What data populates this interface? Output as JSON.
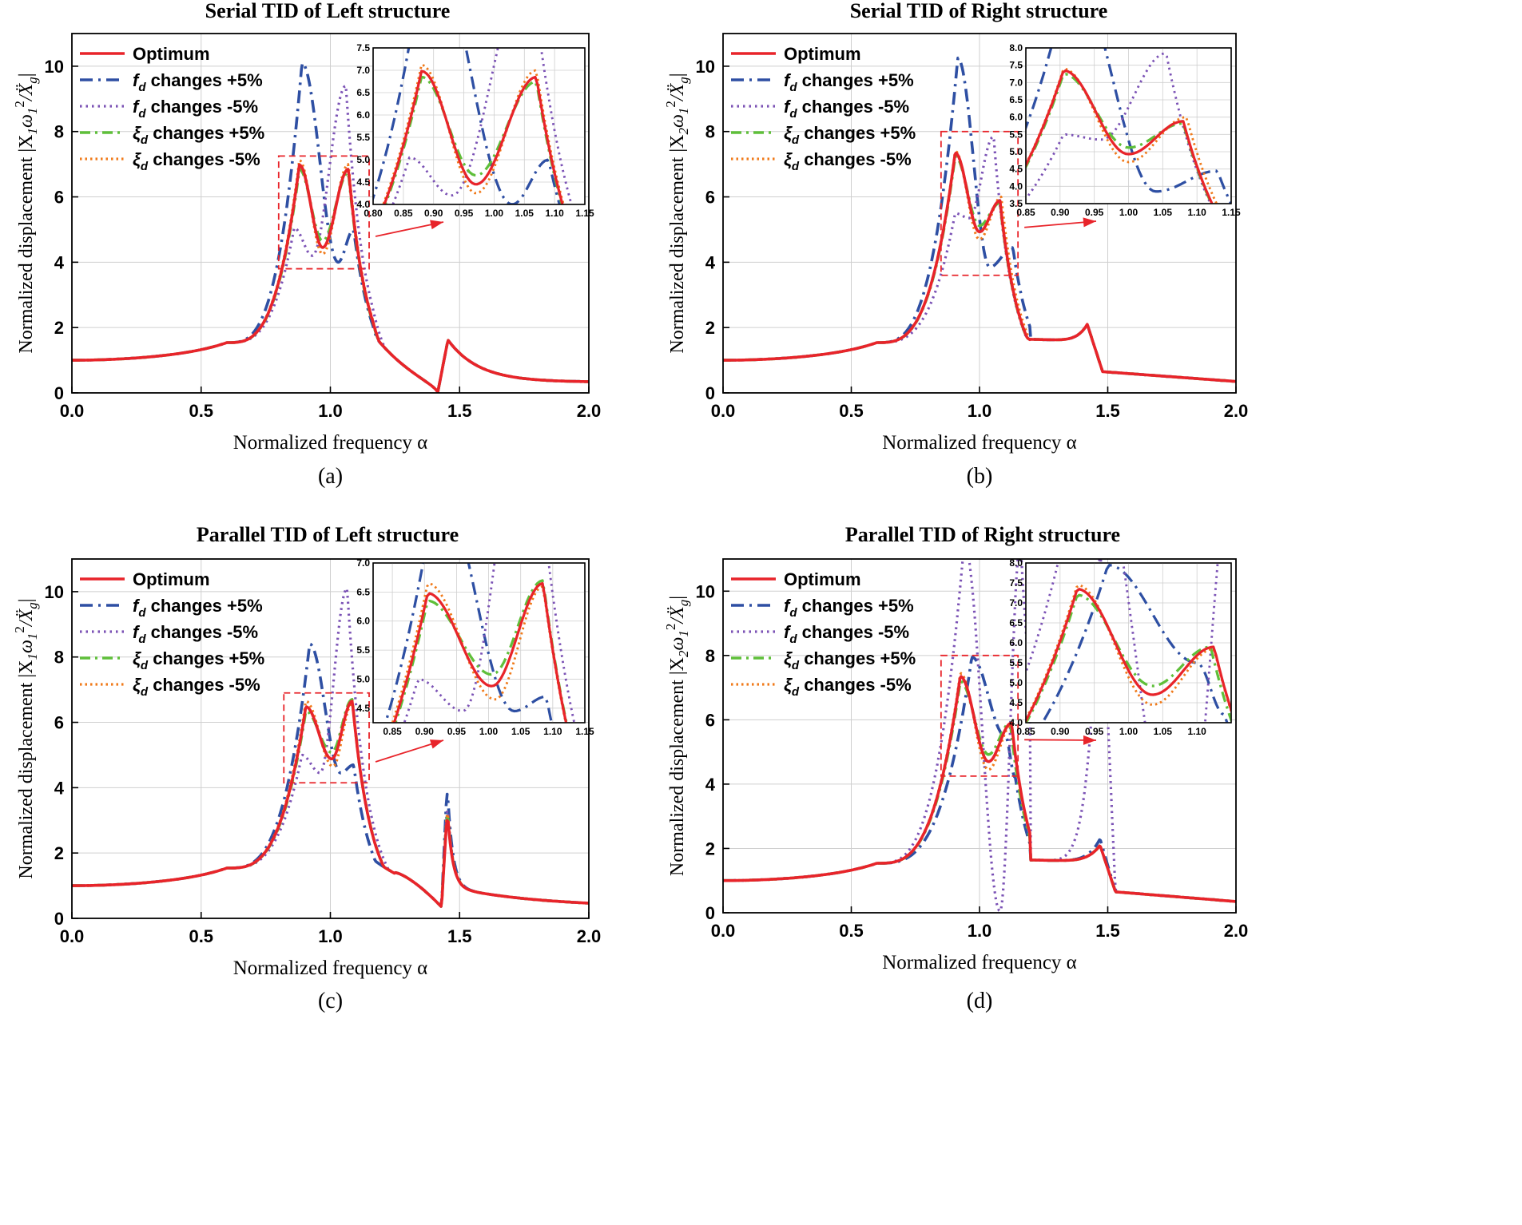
{
  "colors": {
    "optimum": "#e8242a",
    "fd_plus": "#2e4fa3",
    "fd_minus": "#7b52b5",
    "xi_plus": "#5fbf3a",
    "xi_minus": "#f07a1a",
    "box": "#e8242a",
    "arrow": "#e8242a",
    "grid": "#cfcfcf"
  },
  "common": {
    "xlabel": "Normalized frequency α",
    "xlim": [
      0,
      2.0
    ],
    "xticks": [
      "0.0",
      "0.5",
      "1.0",
      "1.5",
      "2.0"
    ],
    "ylim": [
      0,
      11
    ],
    "yticks": [
      "0",
      "2",
      "4",
      "6",
      "8",
      "10"
    ],
    "legend": [
      "Optimum",
      "changes +5%",
      "changes -5%",
      "changes +5%",
      "changes -5%"
    ],
    "legend_symbols": [
      "",
      "f",
      "f",
      "ξ",
      "ξ"
    ],
    "legend_subscript": "d"
  },
  "chart_data": [
    {
      "type": "line",
      "panel": "(a)",
      "title": "Serial TID of Left structure",
      "ylabel": "Normalized displacement |X1ω1²/Ẍg|",
      "ylabel_parts": {
        "pre": "Normalized displacement |X",
        "sub1": "1",
        "mid": "ω",
        "sub2": "1",
        "sup": "2",
        "post": "/Ẍ",
        "sub3": "g",
        "end": "|"
      },
      "zoom_box": {
        "x": [
          0.8,
          1.15
        ],
        "y": [
          3.8,
          7.25
        ]
      },
      "inset": {
        "xlim": [
          0.8,
          1.15
        ],
        "ylim": [
          4.0,
          7.5
        ],
        "xticks": [
          "0.80",
          "0.85",
          "0.90",
          "0.95",
          "1.00",
          "1.05",
          "1.10",
          "1.15"
        ],
        "yticks": [
          "4.0",
          "4.5",
          "5.0",
          "5.5",
          "6.0",
          "6.5",
          "7.0",
          "7.5"
        ]
      },
      "series": [
        {
          "name": "Optimum",
          "peaks": [
            [
              0.88,
              6.98
            ],
            [
              1.07,
              6.85
            ]
          ],
          "valley": [
            0.97,
            4.45
          ],
          "zero_freq": 1.415,
          "high_peak": [
            1.455,
            1.62
          ]
        },
        {
          "name": "fd changes +5%",
          "peaks": [
            [
              0.89,
              10.1
            ],
            [
              1.09,
              5.0
            ]
          ],
          "valley": [
            1.03,
            4.0
          ],
          "zero_freq": 1.415,
          "high_peak": [
            1.455,
            1.62
          ]
        },
        {
          "name": "fd changes -5%",
          "peaks": [
            [
              0.86,
              5.05
            ],
            [
              1.06,
              9.4
            ]
          ],
          "valley": [
            0.93,
            4.2
          ],
          "zero_freq": 1.415,
          "high_peak": [
            1.455,
            1.62
          ]
        },
        {
          "name": "ξd changes +5%",
          "peaks": [
            [
              0.88,
              6.85
            ],
            [
              1.07,
              6.75
            ]
          ],
          "valley": [
            0.97,
            4.65
          ],
          "zero_freq": 1.415,
          "high_peak": [
            1.455,
            1.62
          ]
        },
        {
          "name": "ξd changes -5%",
          "peaks": [
            [
              0.88,
              7.12
            ],
            [
              1.07,
              7.0
            ]
          ],
          "valley": [
            0.97,
            4.25
          ],
          "zero_freq": 1.415,
          "high_peak": [
            1.455,
            1.62
          ]
        }
      ]
    },
    {
      "type": "line",
      "panel": "(b)",
      "title": "Serial TID of Right structure",
      "ylabel": "Normalized displacement |X2ω1²/Ẍg|",
      "ylabel_parts": {
        "pre": "Normalized displacement |X",
        "sub1": "2",
        "mid": "ω",
        "sub2": "1",
        "sup": "2",
        "post": "/Ẍ",
        "sub3": "g",
        "end": "|"
      },
      "zoom_box": {
        "x": [
          0.85,
          1.15
        ],
        "y": [
          3.6,
          8.0
        ]
      },
      "inset": {
        "xlim": [
          0.85,
          1.15
        ],
        "ylim": [
          3.5,
          8.0
        ],
        "xticks": [
          "0.85",
          "0.90",
          "0.95",
          "1.00",
          "1.05",
          "1.10",
          "1.15"
        ],
        "yticks": [
          "3.5",
          "4.0",
          "4.5",
          "5.0",
          "5.5",
          "6.0",
          "6.5",
          "7.0",
          "7.5",
          "8.0"
        ]
      },
      "series": [
        {
          "name": "Optimum",
          "peaks": [
            [
              0.905,
              7.35
            ],
            [
              1.08,
              5.88
            ]
          ],
          "valley": [
            1.0,
            4.93
          ],
          "bump": [
            1.42,
            2.1
          ]
        },
        {
          "name": "fd changes +5%",
          "peaks": [
            [
              0.915,
              10.25
            ],
            [
              1.13,
              4.45
            ]
          ],
          "valley": [
            1.04,
            3.85
          ],
          "bump": [
            1.42,
            2.1
          ]
        },
        {
          "name": "fd changes -5%",
          "peaks": [
            [
              0.905,
              5.5
            ],
            [
              1.055,
              7.85
            ]
          ],
          "valley": [
            0.96,
            5.35
          ],
          "bump": [
            1.42,
            2.1
          ]
        },
        {
          "name": "ξd changes +5%",
          "peaks": [
            [
              0.905,
              7.25
            ],
            [
              1.08,
              5.82
            ]
          ],
          "valley": [
            1.0,
            5.12
          ],
          "bump": [
            1.42,
            2.1
          ]
        },
        {
          "name": "ξd changes -5%",
          "peaks": [
            [
              0.905,
              7.4
            ],
            [
              1.085,
              6.0
            ]
          ],
          "valley": [
            1.0,
            4.7
          ],
          "bump": [
            1.42,
            2.1
          ]
        }
      ]
    },
    {
      "type": "line",
      "panel": "(c)",
      "title": "Parallel TID of Left structure",
      "ylabel": "Normalized displacement |X1ω1²/Ẍg|",
      "ylabel_parts": {
        "pre": "Normalized displacement |X",
        "sub1": "1",
        "mid": "ω",
        "sub2": "1",
        "sup": "2",
        "post": "/Ẍ",
        "sub3": "g",
        "end": "|"
      },
      "zoom_box": {
        "x": [
          0.82,
          1.15
        ],
        "y": [
          4.15,
          6.9
        ]
      },
      "inset": {
        "xlim": [
          0.82,
          1.15
        ],
        "ylim": [
          4.25,
          7.0
        ],
        "xticks": [
          "0.85",
          "0.90",
          "0.95",
          "1.00",
          "1.05",
          "1.10",
          "1.15"
        ],
        "yticks": [
          "4.5",
          "5.0",
          "5.5",
          "6.0",
          "6.5",
          "7.0"
        ]
      },
      "series": [
        {
          "name": "Optimum",
          "peaks": [
            [
              0.905,
              6.48
            ],
            [
              1.085,
              6.65
            ]
          ],
          "valley": [
            1.005,
            4.88
          ],
          "spike": [
            1.45,
            3.0
          ],
          "dip": [
            1.43,
            0.35
          ]
        },
        {
          "name": "fd changes +5%",
          "peaks": [
            [
              0.92,
              8.4
            ],
            [
              1.09,
              4.7
            ]
          ],
          "valley": [
            1.04,
            4.45
          ],
          "spike": [
            1.45,
            3.8
          ],
          "dip": [
            1.43,
            0.35
          ]
        },
        {
          "name": "fd changes -5%",
          "peaks": [
            [
              0.89,
              5.0
            ],
            [
              1.065,
              10.1
            ]
          ],
          "valley": [
            0.96,
            4.45
          ],
          "spike": [
            1.45,
            3.3
          ],
          "dip": [
            1.43,
            0.35
          ]
        },
        {
          "name": "ξd changes +5%",
          "peaks": [
            [
              0.905,
              6.35
            ],
            [
              1.085,
              6.7
            ]
          ],
          "valley": [
            1.005,
            5.08
          ],
          "spike": [
            1.45,
            3.1
          ],
          "dip": [
            1.43,
            0.35
          ]
        },
        {
          "name": "ξd changes -5%",
          "peaks": [
            [
              0.905,
              6.65
            ],
            [
              1.085,
              6.6
            ]
          ],
          "valley": [
            1.01,
            4.65
          ],
          "spike": [
            1.45,
            3.2
          ],
          "dip": [
            1.43,
            0.35
          ]
        }
      ]
    },
    {
      "type": "line",
      "panel": "(d)",
      "title": "Parallel TID of Right structure",
      "ylabel": "Normalized displacement |X2ω1²/Ẍg|",
      "ylabel_parts": {
        "pre": "Normalized displacement |X",
        "sub1": "2",
        "mid": "ω",
        "sub2": "1",
        "sup": "2",
        "post": "/Ẍ",
        "sub3": "g",
        "end": "|"
      },
      "zoom_box": {
        "x": [
          0.85,
          1.15
        ],
        "y": [
          4.25,
          8.0
        ]
      },
      "inset": {
        "xlim": [
          0.85,
          1.15
        ],
        "ylim": [
          4.0,
          8.0
        ],
        "xticks": [
          "0.85",
          "0.90",
          "0.95",
          "1.00",
          "1.05",
          "1.10"
        ],
        "yticks": [
          "4.0",
          "4.5",
          "5.0",
          "5.5",
          "6.0",
          "6.5",
          "7.0",
          "7.5",
          "8.0"
        ]
      },
      "series": [
        {
          "name": "Optimum",
          "peaks": [
            [
              0.925,
              7.35
            ],
            [
              1.125,
              5.9
            ]
          ],
          "valley": [
            1.035,
            4.7
          ],
          "bump": [
            1.47,
            2.1
          ]
        },
        {
          "name": "fd changes +5%",
          "peaks": [
            [
              0.97,
              7.95
            ],
            [
              1.14,
              4.2
            ]
          ],
          "valley": [
            1.1,
            5.5
          ],
          "bump": [
            1.47,
            2.3
          ]
        },
        {
          "name": "fd changes -5%",
          "peaks": [
            [
              0.94,
              11.5
            ],
            [
              1.16,
              11.5
            ]
          ],
          "valley": [
            1.08,
            0.05
          ],
          "bump": [
            1.47,
            11.5
          ]
        },
        {
          "name": "ξd changes +5%",
          "peaks": [
            [
              0.925,
              7.2
            ],
            [
              1.12,
              5.9
            ]
          ],
          "valley": [
            1.035,
            4.92
          ],
          "bump": [
            1.47,
            2.1
          ]
        },
        {
          "name": "ξd changes -5%",
          "peaks": [
            [
              0.925,
              7.45
            ],
            [
              1.125,
              5.85
            ]
          ],
          "valley": [
            1.035,
            4.45
          ],
          "bump": [
            1.47,
            2.1
          ]
        }
      ]
    }
  ]
}
